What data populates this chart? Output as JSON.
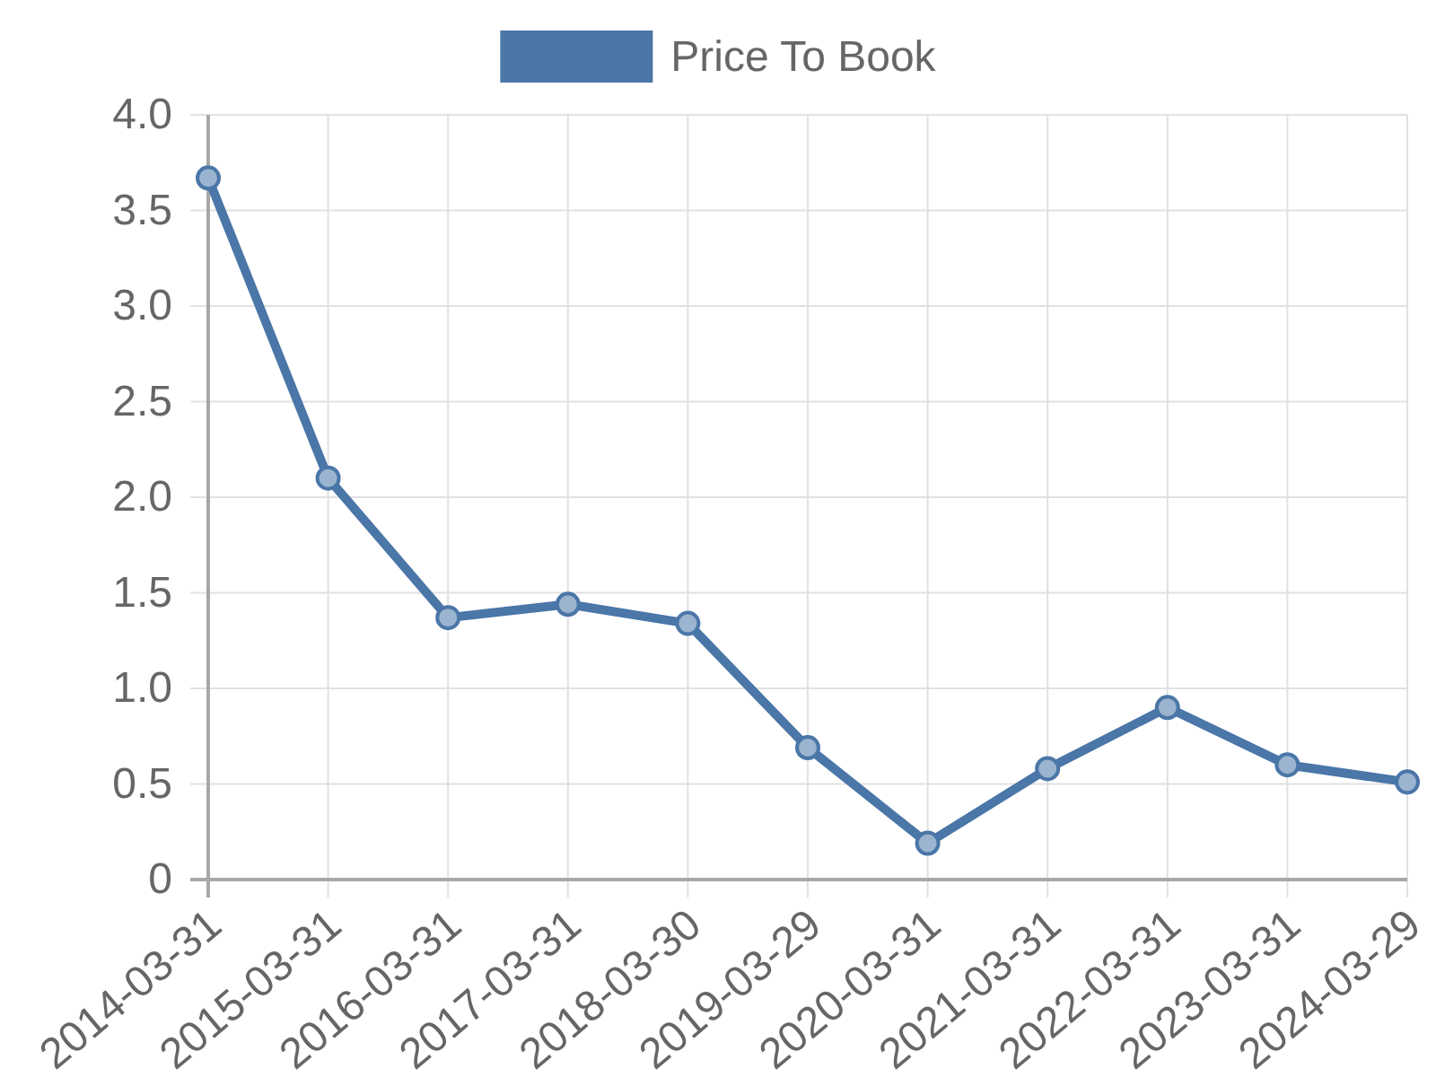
{
  "chart_data": {
    "type": "line",
    "categories": [
      "2014-03-31",
      "2015-03-31",
      "2016-03-31",
      "2017-03-31",
      "2018-03-30",
      "2019-03-29",
      "2020-03-31",
      "2021-03-31",
      "2022-03-31",
      "2023-03-31",
      "2024-03-29"
    ],
    "series": [
      {
        "name": "Price To Book",
        "color": "#4a76a8",
        "values": [
          3.67,
          2.1,
          1.37,
          1.44,
          1.34,
          0.69,
          0.19,
          0.58,
          0.9,
          0.6,
          0.51
        ]
      }
    ],
    "ylim": [
      0,
      4
    ],
    "yticks": [
      0,
      0.5,
      {
        "value": 1,
        "label": "1.0"
      },
      1.5,
      {
        "value": 2,
        "label": "2.0"
      },
      2.5,
      {
        "value": 3,
        "label": "3.0"
      },
      3.5,
      {
        "value": 4,
        "label": "4.0"
      }
    ],
    "grid": true,
    "legend": "top",
    "marker": "circle",
    "line_style": "solid"
  }
}
